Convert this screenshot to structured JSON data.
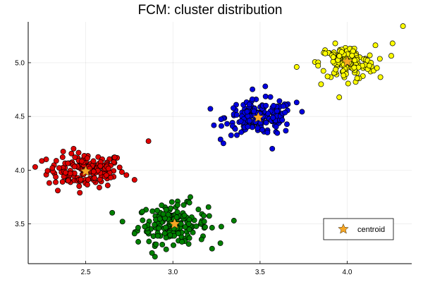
{
  "chart_data": {
    "type": "scatter",
    "title": "FCM: cluster distribution",
    "xlabel": "",
    "ylabel": "",
    "xlim": [
      2.17,
      4.37
    ],
    "ylim": [
      3.13,
      5.38
    ],
    "xticks": [
      2.5,
      3.0,
      3.5,
      4.0
    ],
    "yticks": [
      3.5,
      4.0,
      4.5,
      5.0
    ],
    "xtick_labels": [
      "2.5",
      "3.0",
      "3.5",
      "4.0"
    ],
    "ytick_labels": [
      "3.5",
      "4.0",
      "4.5",
      "5.0"
    ],
    "grid": true,
    "legend_position": "bottom-right",
    "clusters": [
      {
        "color": "#e00000",
        "center": [
          2.5,
          4.0
        ],
        "spread": [
          0.11,
          0.08
        ],
        "count": 150,
        "outliers": [
          [
            2.86,
            4.27
          ],
          [
            2.78,
            3.91
          ],
          [
            2.21,
            4.03
          ],
          [
            2.34,
            3.81
          ]
        ]
      },
      {
        "color": "#008000",
        "center": [
          3.0,
          3.5
        ],
        "spread": [
          0.1,
          0.09
        ],
        "count": 180,
        "outliers": [
          [
            3.35,
            3.53
          ],
          [
            2.88,
            3.23
          ],
          [
            2.78,
            3.41
          ],
          [
            3.1,
            3.75
          ]
        ]
      },
      {
        "color": "#0000e0",
        "center": [
          3.5,
          4.49
        ],
        "spread": [
          0.1,
          0.08
        ],
        "count": 180,
        "outliers": [
          [
            3.29,
            4.25
          ],
          [
            3.71,
            4.63
          ],
          [
            3.53,
            4.78
          ],
          [
            3.57,
            4.2
          ]
        ]
      },
      {
        "color": "#ffff00",
        "center": [
          4.0,
          5.0
        ],
        "spread": [
          0.08,
          0.08
        ],
        "count": 140,
        "outliers": [
          [
            4.32,
            5.34
          ],
          [
            4.26,
            5.18
          ],
          [
            3.85,
            4.8
          ],
          [
            3.71,
            4.96
          ]
        ]
      }
    ],
    "centroids": {
      "name": "centroid",
      "color": "#f6a623",
      "x": [
        2.5,
        3.01,
        3.49,
        4.0
      ],
      "y": [
        3.99,
        3.5,
        4.49,
        5.01
      ]
    }
  }
}
